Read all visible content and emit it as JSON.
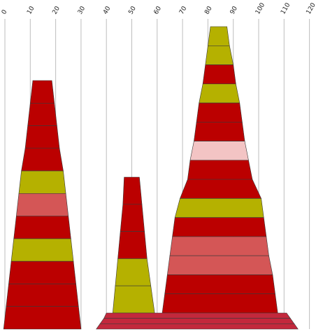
{
  "chart_data": {
    "type": "bar",
    "orientation": "horizontal-stacked-tapered",
    "x_axis": {
      "position": "top",
      "ticks": [
        0,
        10,
        20,
        30,
        40,
        50,
        60,
        70,
        80,
        90,
        100,
        110,
        120
      ],
      "range": [
        0,
        120
      ]
    },
    "grid": true,
    "colors": {
      "red": "#bb0000",
      "olive": "#b5b100",
      "rose": "#d45656",
      "pink": "#f3c4c4",
      "crimson": "#c3283c"
    },
    "groups": [
      {
        "rows": [
          {
            "start": 11.0,
            "end": 18.5,
            "color": "red"
          },
          {
            "start": 10.0,
            "end": 19.5,
            "color": "red"
          },
          {
            "start": 9.0,
            "end": 20.5,
            "color": "red"
          },
          {
            "start": 8.0,
            "end": 21.5,
            "color": "red"
          },
          {
            "start": 6.5,
            "end": 23.0,
            "color": "olive"
          },
          {
            "start": 5.5,
            "end": 24.0,
            "color": "rose"
          },
          {
            "start": 4.5,
            "end": 25.0,
            "color": "red"
          },
          {
            "start": 3.5,
            "end": 26.0,
            "color": "olive"
          },
          {
            "start": 2.5,
            "end": 27.0,
            "color": "red"
          },
          {
            "start": 1.5,
            "end": 28.0,
            "color": "red"
          },
          {
            "start": 0.5,
            "end": 29.0,
            "color": "red"
          }
        ]
      },
      {
        "rows": [
          {
            "start": 47.0,
            "end": 53.0,
            "color": "red"
          },
          {
            "start": 46.5,
            "end": 54.0,
            "color": "red"
          },
          {
            "start": 45.5,
            "end": 55.0,
            "color": "red"
          },
          {
            "start": 44.5,
            "end": 56.0,
            "color": "olive"
          },
          {
            "start": 43.5,
            "end": 57.5,
            "color": "olive"
          }
        ]
      },
      {
        "rows": [
          {
            "start": 81.0,
            "end": 87.5,
            "color": "olive"
          },
          {
            "start": 80.0,
            "end": 88.5,
            "color": "olive"
          },
          {
            "start": 79.0,
            "end": 90.0,
            "color": "red"
          },
          {
            "start": 78.0,
            "end": 91.0,
            "color": "olive"
          },
          {
            "start": 76.5,
            "end": 92.5,
            "color": "red"
          },
          {
            "start": 75.5,
            "end": 93.5,
            "color": "red"
          },
          {
            "start": 74.5,
            "end": 94.5,
            "color": "pink"
          },
          {
            "start": 73.0,
            "end": 96.0,
            "color": "red"
          },
          {
            "start": 72.0,
            "end": 97.5,
            "color": "red"
          },
          {
            "start": 69.0,
            "end": 101.0,
            "color": "olive"
          },
          {
            "start": 67.0,
            "end": 102.0,
            "color": "red"
          },
          {
            "start": 66.0,
            "end": 103.0,
            "color": "rose"
          },
          {
            "start": 65.0,
            "end": 104.0,
            "color": "rose"
          },
          {
            "start": 64.0,
            "end": 105.5,
            "color": "red"
          },
          {
            "start": 63.0,
            "end": 106.5,
            "color": "red"
          }
        ]
      },
      {
        "rows": [
          {
            "start": 40.0,
            "end": 111.0,
            "color": "crimson"
          },
          {
            "start": 39.0,
            "end": 112.5,
            "color": "crimson"
          },
          {
            "start": 37.5,
            "end": 114.0,
            "color": "crimson"
          }
        ]
      }
    ]
  }
}
